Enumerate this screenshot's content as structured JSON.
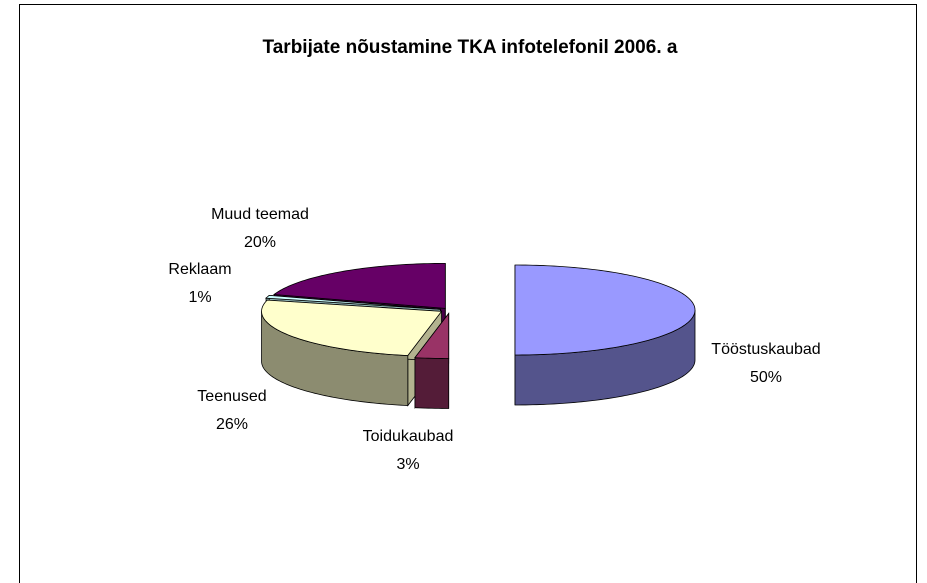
{
  "chart_data": {
    "type": "pie3d",
    "title": "Tarbijate nõustamine TKA infotelefonil 2006. a",
    "categories": [
      "Tööstuskaubad",
      "Toidukaubad",
      "Teenused",
      "Reklaam",
      "Muud teemad"
    ],
    "values": [
      50,
      3,
      26,
      1,
      20
    ],
    "value_labels": [
      "50%",
      "3%",
      "26%",
      "1%",
      "20%"
    ],
    "colors": [
      "#9999ff",
      "#993366",
      "#ffffcc",
      "#ccffff",
      "#660066"
    ]
  }
}
